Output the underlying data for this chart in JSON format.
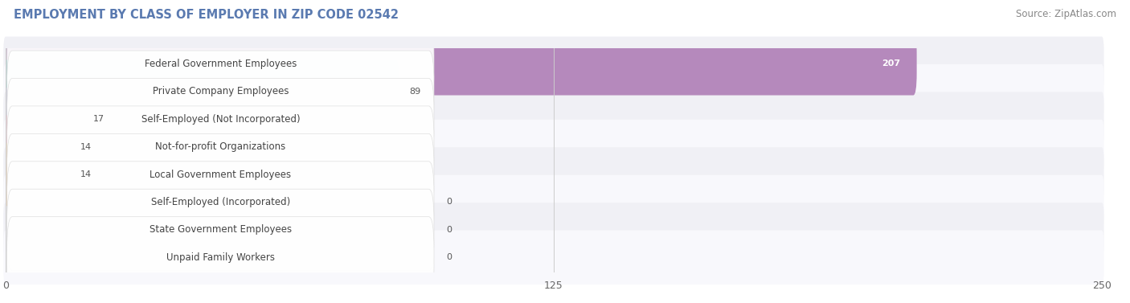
{
  "title": "EMPLOYMENT BY CLASS OF EMPLOYER IN ZIP CODE 02542",
  "source": "Source: ZipAtlas.com",
  "categories": [
    "Federal Government Employees",
    "Private Company Employees",
    "Self-Employed (Not Incorporated)",
    "Not-for-profit Organizations",
    "Local Government Employees",
    "Self-Employed (Incorporated)",
    "State Government Employees",
    "Unpaid Family Workers"
  ],
  "values": [
    207,
    89,
    17,
    14,
    14,
    0,
    0,
    0
  ],
  "bar_colors": [
    "#b589bc",
    "#5bbfbe",
    "#b0b0de",
    "#f090a8",
    "#f5c080",
    "#f0a898",
    "#a8c8e8",
    "#c0a8d8"
  ],
  "xlim": [
    0,
    250
  ],
  "xticks": [
    0,
    125,
    250
  ],
  "background_color": "#ffffff",
  "title_fontsize": 10.5,
  "source_fontsize": 8.5,
  "label_fontsize": 8.5,
  "value_fontsize": 8.0,
  "bar_height": 0.68,
  "row_colors": [
    "#f0f0f5",
    "#f8f8fc",
    "#f0f0f5",
    "#f8f8fc",
    "#f0f0f5",
    "#f8f8fc",
    "#f0f0f5",
    "#f8f8fc"
  ]
}
